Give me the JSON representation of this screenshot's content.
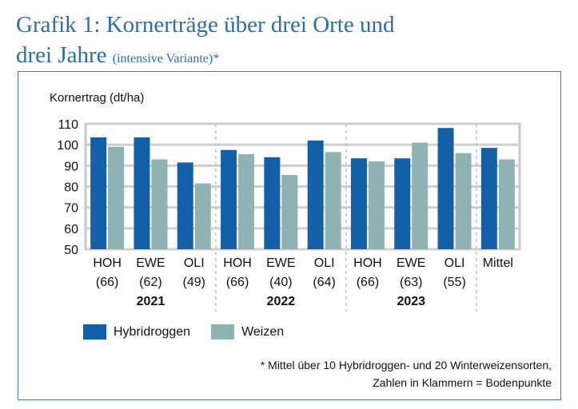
{
  "title_line1": "Grafik 1: Kornerträge über drei Orte und",
  "title_line2": "drei Jahre",
  "title_sub": "(intensive Variante)*",
  "legend": [
    {
      "label": "Hybridroggen",
      "color": "#1460a8"
    },
    {
      "label": "Weizen",
      "color": "#8fb2b3"
    }
  ],
  "footnote_line1": "* Mittel über 10 Hybridroggen- und 20 Winterweizensorten,",
  "footnote_line2": "Zahlen in Klammern = Bodenpunkte",
  "chart_data": {
    "type": "bar",
    "ylabel": "Kornertrag (dt/ha)",
    "ylim": [
      50,
      110
    ],
    "yticks": [
      50,
      60,
      70,
      80,
      90,
      100,
      110
    ],
    "grid": true,
    "categories": [
      "HOH",
      "EWE",
      "OLI",
      "HOH",
      "EWE",
      "OLI",
      "HOH",
      "EWE",
      "OLI",
      "Mittel"
    ],
    "category_sublabels": [
      "(66)",
      "(62)",
      "(49)",
      "(66)",
      "(40)",
      "(64)",
      "(66)",
      "(63)",
      "(55)",
      ""
    ],
    "groups": [
      {
        "label": "2021",
        "categories": [
          0,
          1,
          2
        ]
      },
      {
        "label": "2022",
        "categories": [
          3,
          4,
          5
        ]
      },
      {
        "label": "2023",
        "categories": [
          6,
          7,
          8
        ]
      }
    ],
    "series": [
      {
        "name": "Hybridroggen",
        "color": "#1460a8",
        "values": [
          103.5,
          103.5,
          91.5,
          97.5,
          94,
          102,
          93.5,
          93.5,
          108,
          98.5
        ]
      },
      {
        "name": "Weizen",
        "color": "#8fb2b3",
        "values": [
          99,
          93,
          81.5,
          95.5,
          85.5,
          96.5,
          92,
          101,
          96,
          93
        ]
      }
    ]
  }
}
